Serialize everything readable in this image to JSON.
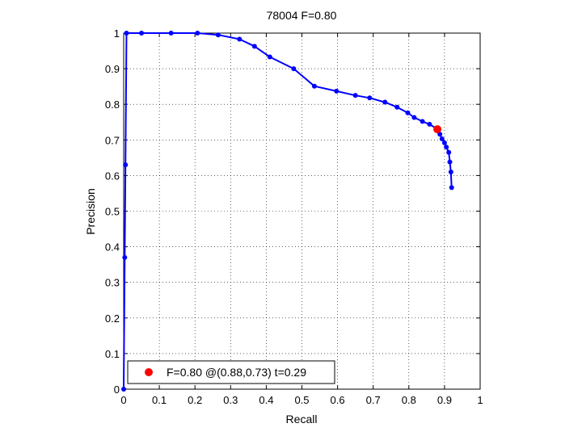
{
  "chart_data": {
    "type": "line",
    "title": "78004 F=0.80",
    "xlabel": "Recall",
    "ylabel": "Precision",
    "xlim": [
      0,
      1
    ],
    "ylim": [
      0,
      1
    ],
    "grid": true,
    "grid_style": "dotted",
    "x_ticks": [
      "0",
      "0.1",
      "0.2",
      "0.3",
      "0.4",
      "0.5",
      "0.6",
      "0.7",
      "0.8",
      "0.9",
      "1"
    ],
    "y_ticks": [
      "0",
      "0.1",
      "0.2",
      "0.3",
      "0.4",
      "0.5",
      "0.6",
      "0.7",
      "0.8",
      "0.9",
      "1"
    ],
    "series": [
      {
        "color": "#0000ff",
        "marker": "dot",
        "points": [
          [
            0.0,
            0.0
          ],
          [
            0.003,
            0.37
          ],
          [
            0.005,
            0.63
          ],
          [
            0.008,
            1.0
          ],
          [
            0.05,
            1.0
          ],
          [
            0.133,
            1.0
          ],
          [
            0.207,
            1.0
          ],
          [
            0.265,
            0.995
          ],
          [
            0.325,
            0.983
          ],
          [
            0.367,
            0.963
          ],
          [
            0.41,
            0.933
          ],
          [
            0.477,
            0.9
          ],
          [
            0.535,
            0.851
          ],
          [
            0.597,
            0.837
          ],
          [
            0.65,
            0.825
          ],
          [
            0.69,
            0.818
          ],
          [
            0.733,
            0.806
          ],
          [
            0.767,
            0.792
          ],
          [
            0.797,
            0.776
          ],
          [
            0.815,
            0.763
          ],
          [
            0.838,
            0.752
          ],
          [
            0.858,
            0.744
          ],
          [
            0.877,
            0.732
          ],
          [
            0.887,
            0.716
          ],
          [
            0.893,
            0.703
          ],
          [
            0.9,
            0.692
          ],
          [
            0.905,
            0.68
          ],
          [
            0.912,
            0.665
          ],
          [
            0.915,
            0.638
          ],
          [
            0.918,
            0.61
          ],
          [
            0.92,
            0.566
          ]
        ]
      }
    ],
    "highlight": {
      "x": 0.88,
      "y": 0.73,
      "color": "#ff0000",
      "label": "F=0.80 @(0.88,0.73) t=0.29"
    },
    "legend_position": "bottom-left"
  }
}
